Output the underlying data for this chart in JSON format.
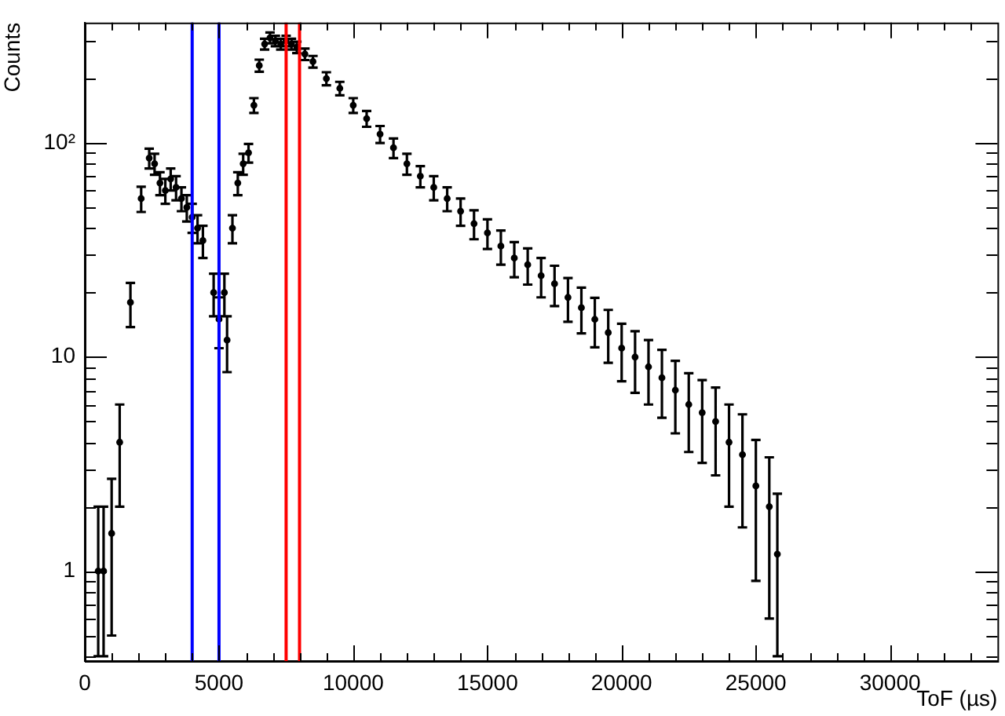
{
  "chart_data": {
    "type": "scatter",
    "xlabel": "ToF (µs)",
    "ylabel": "Counts",
    "log": "y",
    "grid": false,
    "legend": false,
    "marker": "circle",
    "xlim": [
      0,
      34000
    ],
    "ylim": [
      0.38,
      365
    ],
    "xticks": [
      0,
      {
        "value": 1000,
        "label": null
      },
      {
        "value": 2000,
        "label": null
      },
      {
        "value": 3000,
        "label": null
      },
      {
        "value": 4000,
        "label": null
      },
      5000,
      {
        "value": 6000,
        "label": null
      },
      {
        "value": 7000,
        "label": null
      },
      {
        "value": 8000,
        "label": null
      },
      {
        "value": 9000,
        "label": null
      },
      10000,
      {
        "value": 11000,
        "label": null
      },
      {
        "value": 12000,
        "label": null
      },
      {
        "value": 13000,
        "label": null
      },
      {
        "value": 14000,
        "label": null
      },
      15000,
      {
        "value": 16000,
        "label": null
      },
      {
        "value": 17000,
        "label": null
      },
      {
        "value": 18000,
        "label": null
      },
      {
        "value": 19000,
        "label": null
      },
      20000,
      {
        "value": 21000,
        "label": null
      },
      {
        "value": 22000,
        "label": null
      },
      {
        "value": 23000,
        "label": null
      },
      {
        "value": 24000,
        "label": null
      },
      25000,
      {
        "value": 26000,
        "label": null
      },
      {
        "value": 27000,
        "label": null
      },
      {
        "value": 28000,
        "label": null
      },
      {
        "value": 29000,
        "label": null
      },
      30000,
      {
        "value": 31000,
        "label": null
      },
      {
        "value": 32000,
        "label": null
      },
      {
        "value": 33000,
        "label": null
      }
    ],
    "yticks": [
      {
        "value": 0.4,
        "label": null
      },
      {
        "value": 0.5,
        "label": null
      },
      {
        "value": 0.6,
        "label": null
      },
      {
        "value": 0.7,
        "label": null
      },
      {
        "value": 0.8,
        "label": null
      },
      {
        "value": 0.9,
        "label": null
      },
      1,
      {
        "value": 2,
        "label": null
      },
      {
        "value": 3,
        "label": null
      },
      {
        "value": 4,
        "label": null
      },
      {
        "value": 5,
        "label": null
      },
      {
        "value": 6,
        "label": null
      },
      {
        "value": 7,
        "label": null
      },
      {
        "value": 8,
        "label": null
      },
      {
        "value": 9,
        "label": null
      },
      10,
      {
        "value": 20,
        "label": null
      },
      {
        "value": 30,
        "label": null
      },
      {
        "value": 40,
        "label": null
      },
      {
        "value": 50,
        "label": null
      },
      {
        "value": 60,
        "label": null
      },
      {
        "value": 70,
        "label": null
      },
      {
        "value": 80,
        "label": null
      },
      {
        "value": 90,
        "label": null
      },
      {
        "value": 100,
        "label": "10²"
      },
      {
        "value": 200,
        "label": null
      },
      {
        "value": 300,
        "label": null
      }
    ],
    "ref_lines": [
      {
        "axis": "x",
        "value": 4000,
        "color": "#0000ff"
      },
      {
        "axis": "x",
        "value": 5000,
        "color": "#0000ff"
      },
      {
        "axis": "x",
        "value": 7500,
        "color": "#ff0000"
      },
      {
        "axis": "x",
        "value": 8000,
        "color": "#ff0000"
      }
    ],
    "series": [
      {
        "color": "#000000",
        "x": [
          500,
          700,
          1000,
          1300,
          1700,
          2100,
          2400,
          2600,
          2800,
          3000,
          3200,
          3400,
          3600,
          3800,
          4000,
          4200,
          4400,
          4800,
          5000,
          5200,
          5300,
          5500,
          5700,
          5900,
          6100,
          6300,
          6500,
          6700,
          6900,
          7100,
          7300,
          7500,
          7700,
          7900,
          8200,
          8500,
          9000,
          9500,
          10000,
          10500,
          11000,
          11500,
          12000,
          12500,
          13000,
          13500,
          14000,
          14500,
          15000,
          15500,
          16000,
          16500,
          17000,
          17500,
          18000,
          18500,
          19000,
          19500,
          20000,
          20500,
          21000,
          21500,
          22000,
          22500,
          23000,
          23500,
          24000,
          24500,
          25000,
          25500,
          25800
        ],
        "values": [
          1,
          1,
          1.5,
          4,
          18,
          55,
          85,
          80,
          65,
          60,
          68,
          62,
          55,
          50,
          45,
          40,
          35,
          20,
          15,
          20,
          12,
          40,
          65,
          80,
          90,
          150,
          230,
          290,
          310,
          300,
          290,
          300,
          290,
          280,
          260,
          240,
          200,
          180,
          150,
          130,
          110,
          95,
          80,
          70,
          62,
          55,
          48,
          42,
          38,
          33,
          29,
          27,
          24,
          22,
          19,
          17,
          15,
          13,
          11,
          10,
          9,
          8,
          7,
          6,
          5.5,
          5,
          4,
          3.5,
          2.5,
          2,
          1.2
        ],
        "errors": [
          [
            0.4,
            2
          ],
          [
            0.4,
            2
          ],
          [
            0.5,
            2.7
          ],
          2,
          4.2,
          7.4,
          9,
          9,
          8,
          8,
          8,
          8,
          7,
          7,
          7,
          6,
          6,
          4.5,
          4,
          4.5,
          3.5,
          6,
          8,
          9,
          9,
          12,
          15,
          17,
          18,
          17,
          17,
          17,
          17,
          17,
          16,
          15,
          14,
          13,
          12,
          11,
          10,
          10,
          9,
          8,
          8,
          7,
          7,
          6.5,
          6,
          6,
          5.4,
          5.2,
          5,
          4.7,
          4.4,
          4.1,
          3.9,
          3.6,
          3.3,
          3.2,
          3,
          2.8,
          2.6,
          2.4,
          2.3,
          2.2,
          2,
          1.9,
          1.6,
          1.4,
          [
            0.4,
            2.3
          ]
        ]
      }
    ]
  }
}
